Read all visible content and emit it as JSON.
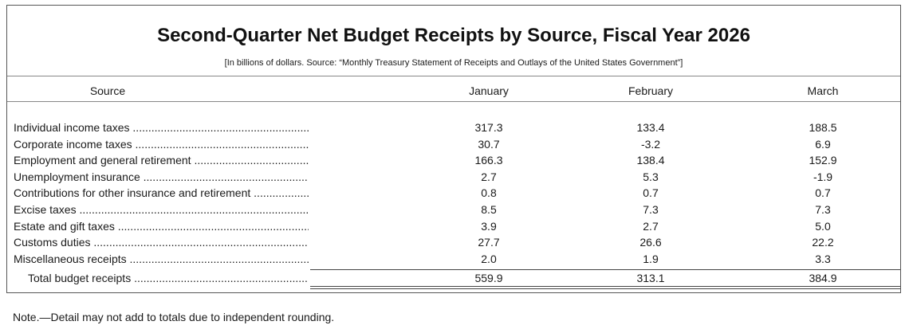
{
  "title": "Second-Quarter Net Budget Receipts by Source, Fiscal Year 2026",
  "subtitle": "[In billions of dollars. Source: “Monthly Treasury Statement of Receipts and Outlays of the United States Government”]",
  "columns": {
    "source": "Source",
    "jan": "January",
    "feb": "February",
    "mar": "March"
  },
  "rows": [
    {
      "label": "Individual income taxes",
      "jan": "317.3",
      "feb": "133.4",
      "mar": "188.5"
    },
    {
      "label": "Corporate income taxes",
      "jan": "30.7",
      "feb": "-3.2",
      "mar": "6.9"
    },
    {
      "label": "Employment and general retirement",
      "jan": "166.3",
      "feb": "138.4",
      "mar": "152.9"
    },
    {
      "label": "Unemployment insurance",
      "jan": "2.7",
      "feb": "5.3",
      "mar": "-1.9"
    },
    {
      "label": "Contributions for other insurance and retirement",
      "jan": "0.8",
      "feb": "0.7",
      "mar": "0.7"
    },
    {
      "label": "Excise taxes",
      "jan": "8.5",
      "feb": "7.3",
      "mar": "7.3"
    },
    {
      "label": "Estate and gift taxes",
      "jan": "3.9",
      "feb": "2.7",
      "mar": "5.0"
    },
    {
      "label": "Customs duties",
      "jan": "27.7",
      "feb": "26.6",
      "mar": "22.2"
    },
    {
      "label": "Miscellaneous receipts",
      "jan": "2.0",
      "feb": "1.9",
      "mar": "3.3"
    }
  ],
  "total": {
    "label": "Total budget receipts",
    "jan": "559.9",
    "feb": "313.1",
    "mar": "384.9"
  },
  "note": "Note.—Detail may not add to totals due to independent rounding."
}
